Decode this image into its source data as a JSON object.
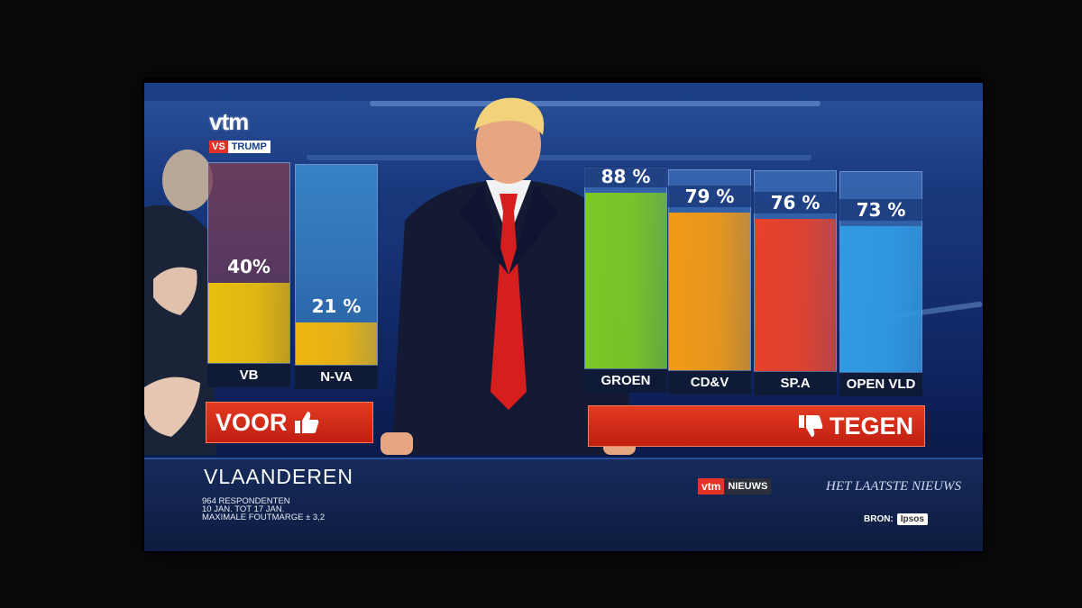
{
  "broadcast": {
    "logo_text": "vtm",
    "logo_vs": "VS",
    "logo_trump": "TRUMP"
  },
  "banners": {
    "voor": "VOOR",
    "tegen": "TEGEN",
    "voor_icon": "thumbs-up-icon",
    "tegen_icon": "thumbs-down-icon"
  },
  "lower_third": {
    "title": "VLAANDEREN",
    "line1": "964 RESPONDENTEN",
    "line2": "10 JAN. TOT 17 JAN.",
    "line3": "MAXIMALE FOUTMARGE ± 3,2",
    "vtm_red": "vtm",
    "vtm_nieuws": "NIEUWS",
    "hln": "HET LAATSTE NIEUWS",
    "bron_label": "BRON:",
    "bron_source": "Ipsos"
  },
  "chart_data": {
    "type": "bar",
    "categories": [
      "VB",
      "N-VA",
      "GROEN",
      "CD&V",
      "SP.A",
      "OPEN VLD"
    ],
    "values": [
      40,
      21,
      88,
      79,
      76,
      73
    ],
    "value_labels": [
      "40%",
      "21 %",
      "88 %",
      "79 %",
      "76 %",
      "73 %"
    ],
    "groups": [
      "VOOR",
      "VOOR",
      "TEGEN",
      "TEGEN",
      "TEGEN",
      "TEGEN"
    ],
    "colors": [
      "#e8c00e",
      "#f0b60f",
      "#7cc824",
      "#f29a16",
      "#e8412a",
      "#2f9be4"
    ],
    "bg_colors": [
      "#7a3c55",
      "#3f93d8",
      "#3c6fb8",
      "#3c6fb8",
      "#3c6fb8",
      "#3c6fb8"
    ],
    "ylim": [
      0,
      100
    ]
  }
}
